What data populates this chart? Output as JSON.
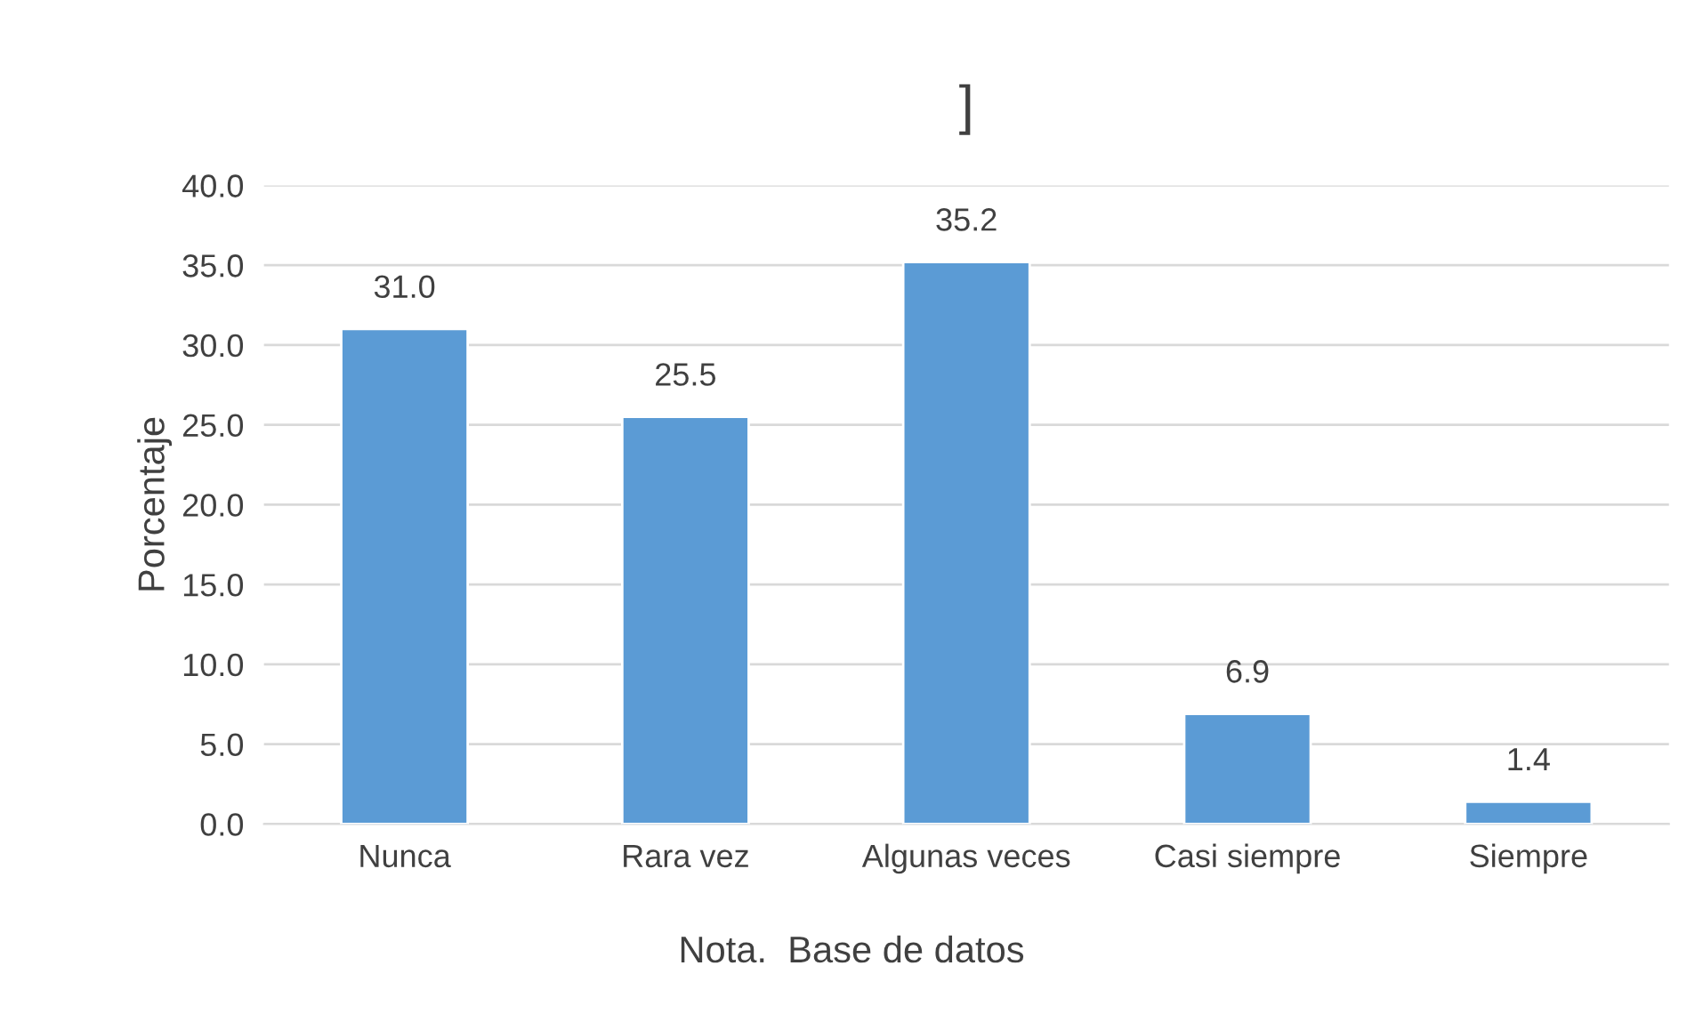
{
  "chart_data": {
    "type": "bar",
    "title": "]",
    "categories": [
      "Nunca",
      "Rara vez",
      "Algunas veces",
      "Casi siempre",
      "Siempre"
    ],
    "values": [
      31.0,
      25.5,
      35.2,
      6.9,
      1.4
    ],
    "value_labels": [
      "31.0",
      "25.5",
      "35.2",
      "6.9",
      "1.4"
    ],
    "color": "#5b9bd5",
    "ylabel": "Porcentaje",
    "ylim": [
      0,
      40
    ],
    "yticks": [
      {
        "value": 0,
        "label": "0.0"
      },
      {
        "value": 5,
        "label": "5.0"
      },
      {
        "value": 10,
        "label": "10.0"
      },
      {
        "value": 15,
        "label": "15.0"
      },
      {
        "value": 20,
        "label": "20.0"
      },
      {
        "value": 25,
        "label": "25.0"
      },
      {
        "value": 30,
        "label": "30.0"
      },
      {
        "value": 35,
        "label": "35.0"
      },
      {
        "value": 40,
        "label": "40.0"
      }
    ],
    "grid": "y",
    "annotations": [
      "Nota.  Base de datos"
    ]
  }
}
